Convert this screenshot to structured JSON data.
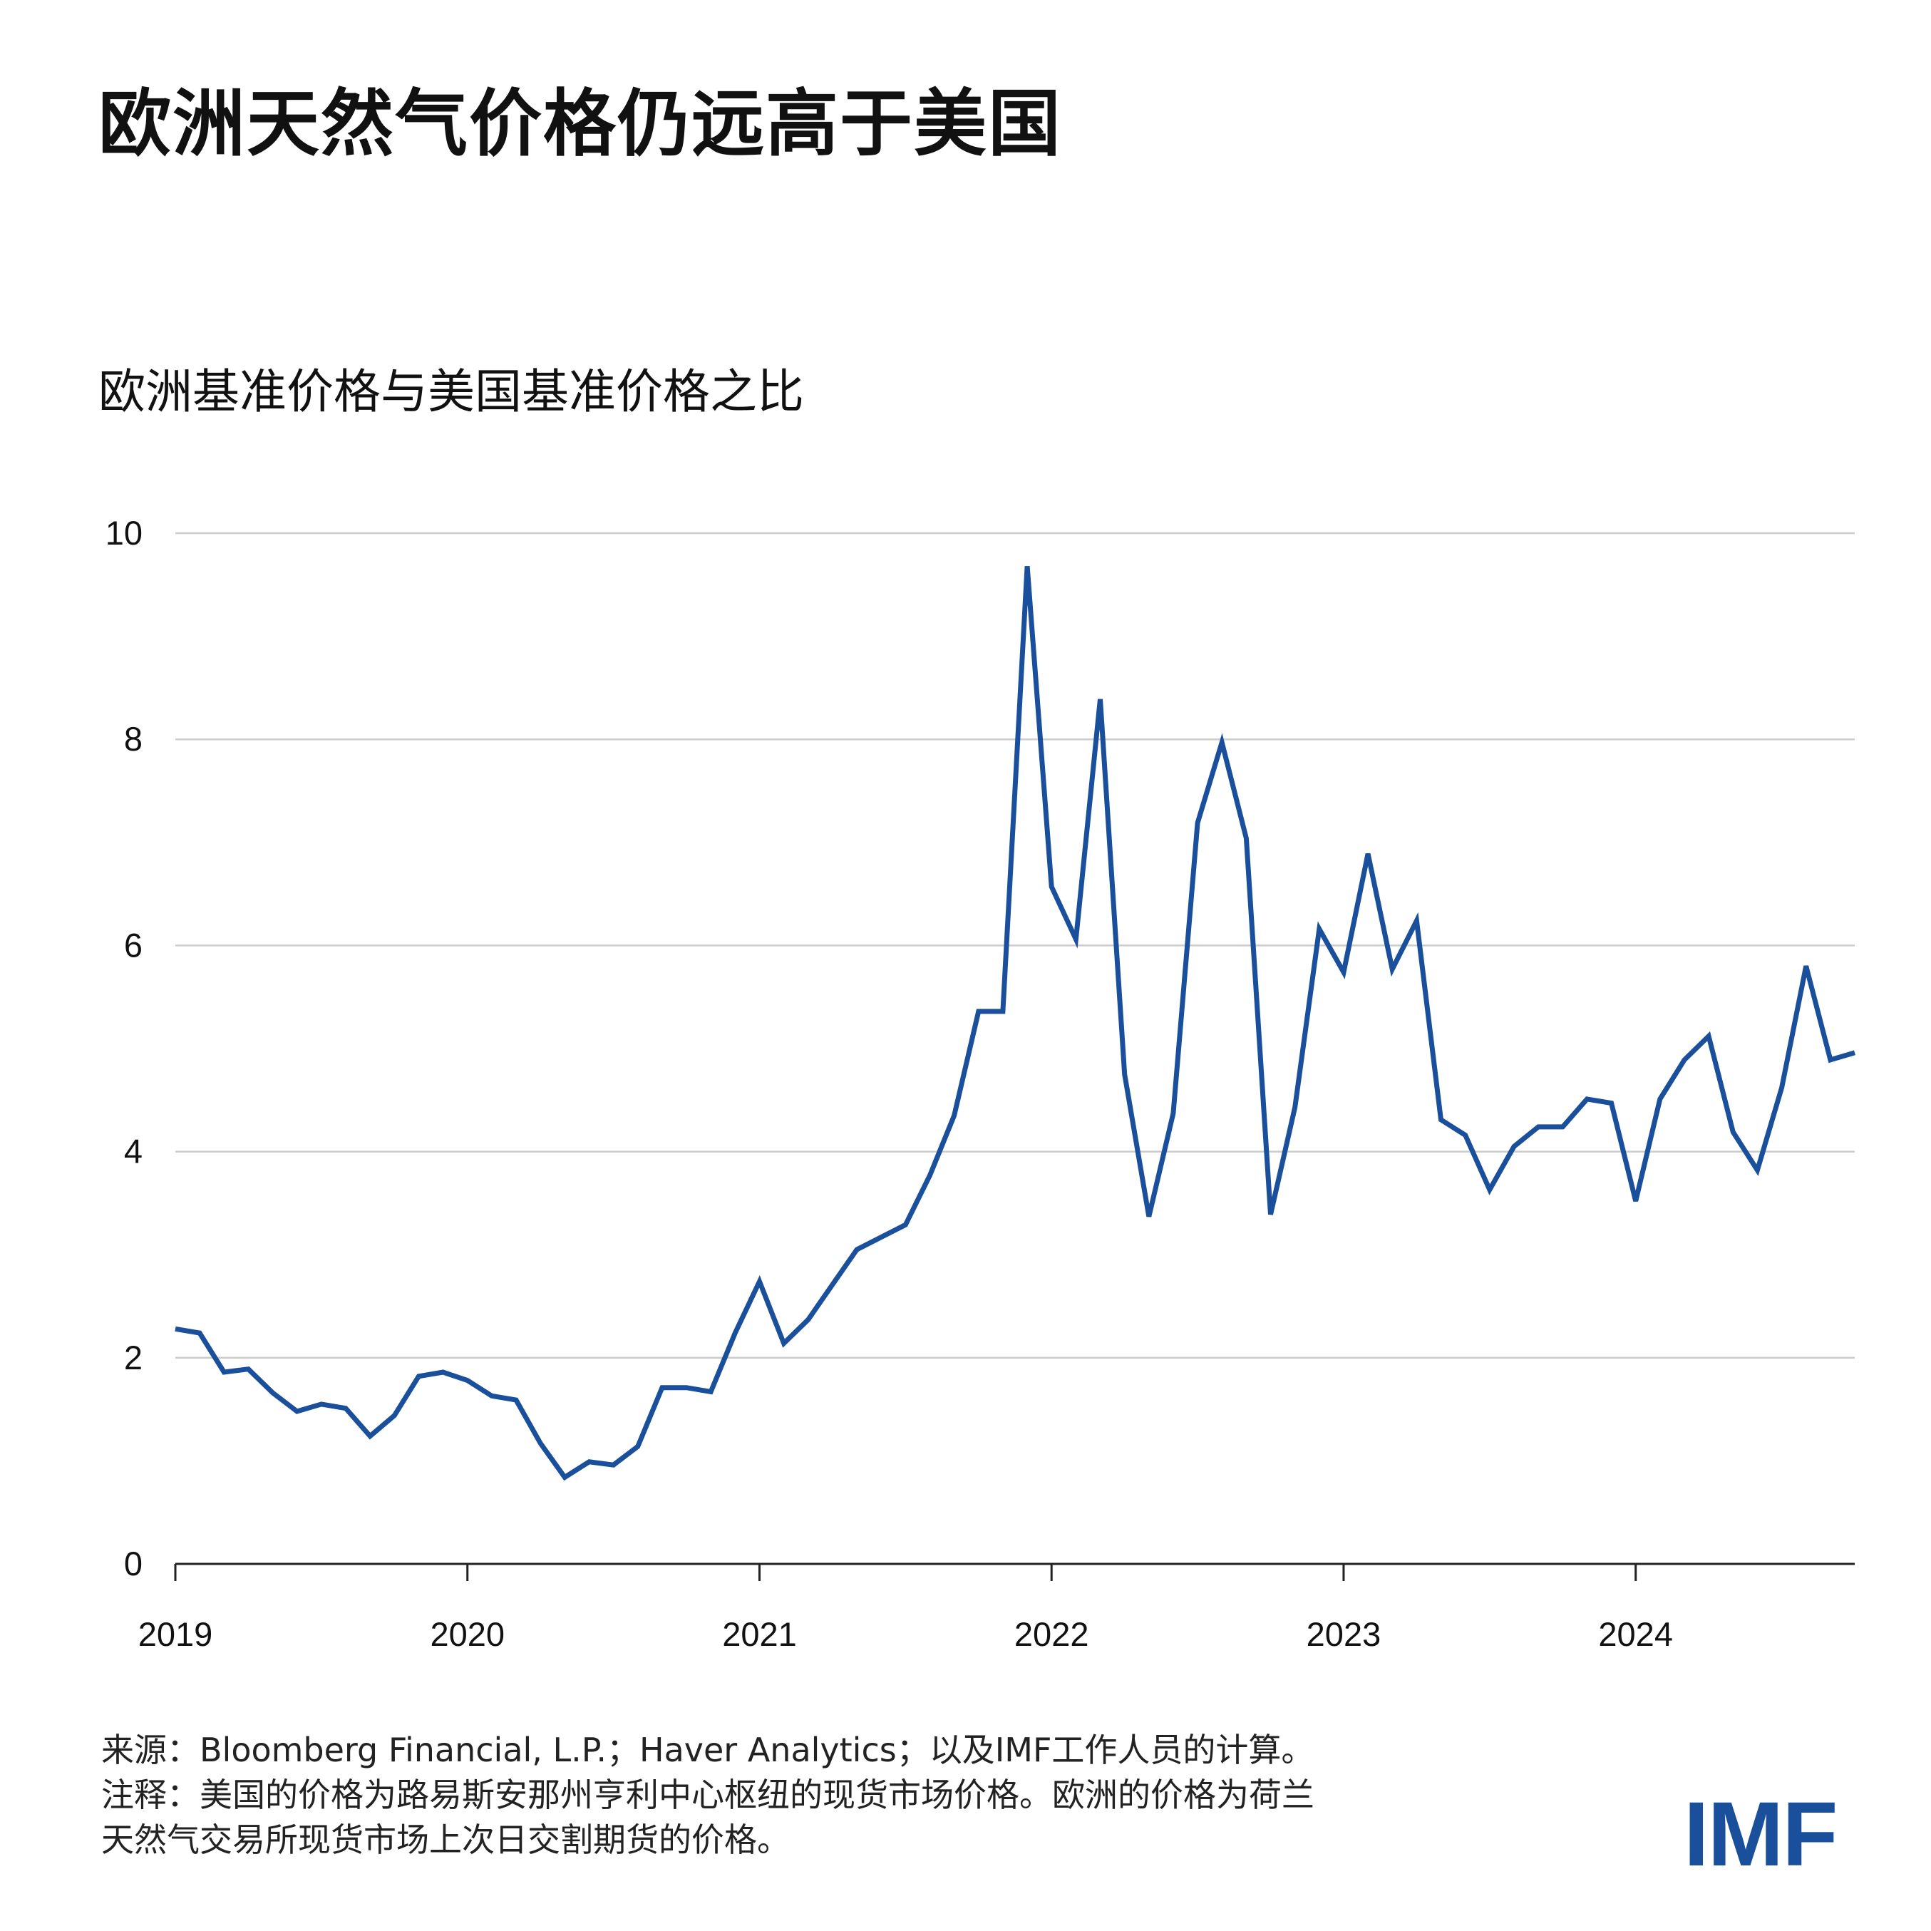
{
  "title": "欧洲天然气价格仍远高于美国",
  "subtitle": "欧洲基准价格与美国基准价格之比",
  "source_text": "来源：Bloomberg Financial, L.P.；Haver Analytics；以及IMF工作人员的计算。",
  "note_line1": "注释：美国的价格为路易斯安那州亨利中心枢纽的现货市场价格。欧洲的价格为荷兰",
  "note_line2": "天然气交易所现货市场上次日交割期货的价格。",
  "logo": "IMF",
  "colors": {
    "line": "#1a4f9c",
    "grid": "#cccccc",
    "axis": "#222222"
  },
  "chart_data": {
    "type": "line",
    "title": "欧洲天然气价格仍远高于美国",
    "ylabel": "欧洲基准价格与美国基准价格之比",
    "xlabel": "",
    "grid": true,
    "ylim": [
      0,
      10
    ],
    "yticks": [
      0,
      2,
      4,
      6,
      8,
      10
    ],
    "xlim": [
      "2019-01",
      "2024-10"
    ],
    "xticks": [
      "2019",
      "2020",
      "2021",
      "2022",
      "2023",
      "2024"
    ],
    "x": [
      "2019-01",
      "2019-02",
      "2019-03",
      "2019-04",
      "2019-05",
      "2019-06",
      "2019-07",
      "2019-08",
      "2019-09",
      "2019-10",
      "2019-11",
      "2019-12",
      "2020-01",
      "2020-02",
      "2020-03",
      "2020-04",
      "2020-05",
      "2020-06",
      "2020-07",
      "2020-08",
      "2020-09",
      "2020-10",
      "2020-11",
      "2020-12",
      "2021-01",
      "2021-02",
      "2021-03",
      "2021-04",
      "2021-05",
      "2021-06",
      "2021-07",
      "2021-08",
      "2021-09",
      "2021-10",
      "2021-11",
      "2021-12",
      "2022-01",
      "2022-02",
      "2022-03",
      "2022-04",
      "2022-05",
      "2022-06",
      "2022-07",
      "2022-08",
      "2022-09",
      "2022-10",
      "2022-11",
      "2022-12",
      "2023-01",
      "2023-02",
      "2023-03",
      "2023-04",
      "2023-05",
      "2023-06",
      "2023-07",
      "2023-08",
      "2023-09",
      "2023-10",
      "2023-11",
      "2023-12",
      "2024-01",
      "2024-02",
      "2024-03",
      "2024-04",
      "2024-05",
      "2024-06",
      "2024-07",
      "2024-08",
      "2024-09",
      "2024-10"
    ],
    "series": [
      {
        "values": [
          2.28,
          2.24,
          1.86,
          1.89,
          1.66,
          1.48,
          1.55,
          1.51,
          1.24,
          1.44,
          1.82,
          1.86,
          1.78,
          1.63,
          1.59,
          1.17,
          0.84,
          0.99,
          0.96,
          1.14,
          1.71,
          1.71,
          1.67,
          2.24,
          2.74,
          2.14,
          2.37,
          2.71,
          3.05,
          3.17,
          3.29,
          3.77,
          4.35,
          5.36,
          5.36,
          9.68,
          6.57,
          6.06,
          8.39,
          4.75,
          3.37,
          4.37,
          7.19,
          7.97,
          7.04,
          3.39,
          4.43,
          6.16,
          5.74,
          6.89,
          5.77,
          6.24,
          4.31,
          4.16,
          3.63,
          4.05,
          4.24,
          4.24,
          4.51,
          4.47,
          3.52,
          4.51,
          4.89,
          5.12,
          4.19,
          3.82,
          4.62,
          5.8,
          4.89,
          4.96
        ]
      }
    ]
  }
}
